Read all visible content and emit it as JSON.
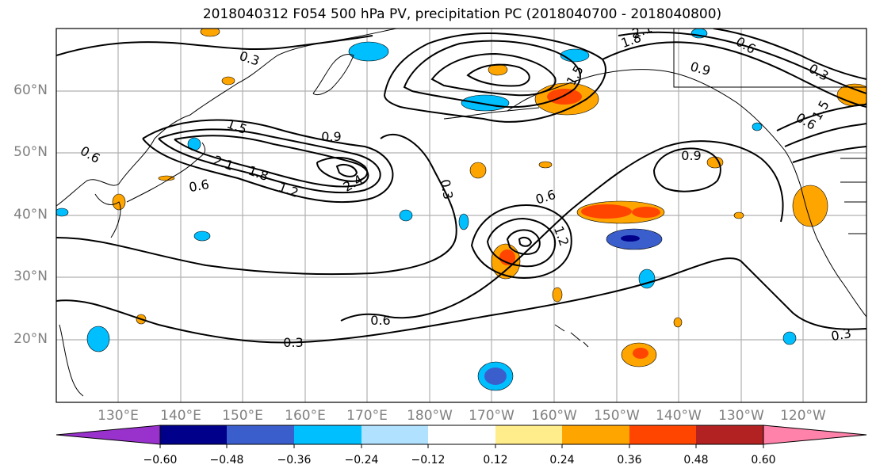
{
  "title": "2018040312 F054 500 hPa PV, precipitation PC (2018040700 - 2018040800)",
  "lat_labels": [
    "60°N",
    "50°N",
    "40°N",
    "30°N",
    "20°N"
  ],
  "lon_labels": [
    "130°E",
    "140°E",
    "150°E",
    "160°E",
    "170°E",
    "180°W",
    "170°W",
    "160°W",
    "150°W",
    "140°W",
    "130°W",
    "120°W"
  ],
  "colorbar": {
    "colors": [
      "#9932cc",
      "#00008b",
      "#3a5fcd",
      "#00bfff",
      "#b0e2ff",
      "#ffffff",
      "#ffec8b",
      "#ffa500",
      "#ff4500",
      "#b22222",
      "#ff82ab"
    ],
    "tick_labels": [
      "−0.60",
      "−0.48",
      "−0.36",
      "−0.24",
      "−0.12",
      "0.12",
      "0.24",
      "0.36",
      "0.48",
      "0.60"
    ]
  },
  "contour_labels": [
    "0.3",
    "0.6",
    "0.9",
    "1.2",
    "1.5",
    "1.8",
    "2.1",
    "2.4",
    "1.8",
    "2.1",
    "0.6",
    "0.9",
    "0.3",
    "0.6",
    "1.5",
    "0.9",
    "0.6",
    "1.2",
    "0.3",
    "0.6",
    "0.3",
    "1.5",
    "0.6",
    "0.3"
  ]
}
